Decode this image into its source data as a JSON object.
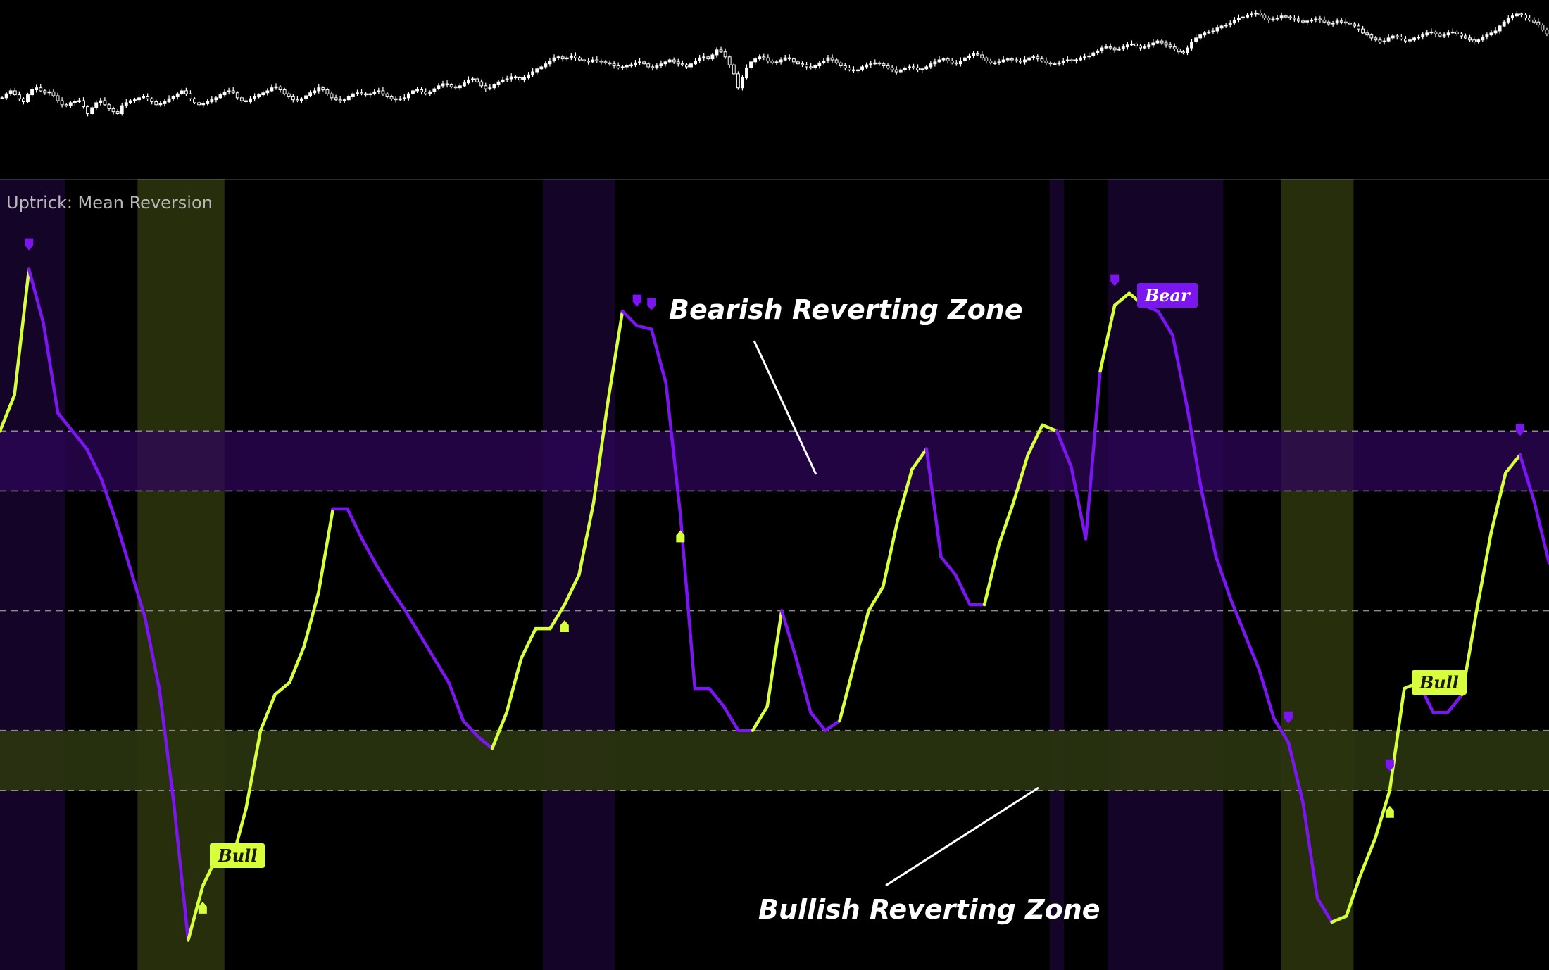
{
  "indicator": {
    "title": "Uptrick: Mean Reversion"
  },
  "annotations": {
    "bearish_zone": "Bearish Reverting Zone",
    "bullish_zone": "Bullish Reverting Zone"
  },
  "labels": {
    "bull": "Bull",
    "bear": "Bear"
  },
  "colors": {
    "background": "#000000",
    "bull": "#d7ff3c",
    "bear": "#7b16f0",
    "bear_zone_band": "#2e0659",
    "bull_zone_band": "#2a3510",
    "dashed_levels": "#8a8a8a",
    "price_candles": "#ffffff"
  },
  "chart_data": [
    {
      "type": "candlestick",
      "name": "price",
      "close": [
        100,
        104,
        107,
        103,
        99,
        96,
        103,
        108,
        110,
        107,
        105,
        106,
        102,
        97,
        93,
        92,
        95,
        96,
        97,
        91,
        84,
        90,
        95,
        97,
        93,
        89,
        86,
        84,
        92,
        95,
        97,
        98,
        100,
        101,
        99,
        96,
        93,
        94,
        96,
        99,
        101,
        104,
        107,
        104,
        99,
        95,
        93,
        94,
        96,
        98,
        100,
        103,
        106,
        107,
        105,
        100,
        97,
        96,
        99,
        101,
        103,
        105,
        107,
        110,
        111,
        108,
        104,
        101,
        98,
        97,
        99,
        102,
        105,
        107,
        110,
        108,
        104,
        100,
        98,
        97,
        98,
        101,
        104,
        105,
        104,
        103,
        104,
        106,
        107,
        104,
        101,
        99,
        98,
        99,
        100,
        104,
        107,
        108,
        106,
        104,
        106,
        109,
        112,
        114,
        113,
        111,
        110,
        112,
        115,
        118,
        119,
        116,
        112,
        109,
        110,
        113,
        116,
        118,
        119,
        121,
        120,
        118,
        120,
        123,
        126,
        129,
        131,
        134,
        137,
        140,
        141,
        139,
        140,
        142,
        140,
        138,
        137,
        136,
        138,
        137,
        136,
        135,
        134,
        132,
        130,
        131,
        132,
        133,
        135,
        136,
        134,
        131,
        130,
        132,
        134,
        136,
        138,
        136,
        134,
        133,
        131,
        134,
        137,
        140,
        141,
        139,
        143,
        148,
        146,
        141,
        133,
        124,
        110,
        120,
        130,
        136,
        139,
        141,
        140,
        137,
        135,
        136,
        138,
        140,
        139,
        136,
        134,
        133,
        131,
        130,
        132,
        135,
        137,
        140,
        138,
        135,
        132,
        130,
        128,
        127,
        128,
        131,
        133,
        134,
        135,
        134,
        132,
        130,
        128,
        126,
        128,
        130,
        131,
        130,
        128,
        129,
        131,
        134,
        136,
        138,
        139,
        137,
        135,
        134,
        137,
        140,
        142,
        144,
        143,
        140,
        137,
        135,
        135,
        136,
        138,
        139,
        138,
        137,
        136,
        138,
        140,
        141,
        139,
        137,
        135,
        134,
        134,
        135,
        137,
        138,
        137,
        138,
        140,
        141,
        142,
        145,
        147,
        150,
        151,
        150,
        148,
        149,
        151,
        153,
        154,
        152,
        150,
        151,
        153,
        155,
        157,
        155,
        153,
        151,
        149,
        146,
        145,
        150,
        156,
        160,
        163,
        165,
        166,
        167,
        170,
        172,
        173,
        175,
        178,
        180,
        181,
        183,
        184,
        185,
        183,
        180,
        178,
        179,
        180,
        182,
        181,
        180,
        179,
        177,
        176,
        177,
        178,
        179,
        178,
        176,
        174,
        175,
        177,
        176,
        175,
        174,
        172,
        169,
        165,
        163,
        160,
        158,
        156,
        157,
        160,
        162,
        161,
        159,
        157,
        158,
        160,
        161,
        163,
        165,
        166,
        164,
        162,
        163,
        165,
        166,
        164,
        162,
        160,
        158,
        156,
        158,
        161,
        163,
        165,
        167,
        172,
        176,
        180,
        182,
        184,
        183,
        180,
        178,
        176,
        173,
        168,
        164
      ]
    },
    {
      "type": "line",
      "name": "",
      "y": [
        1.5,
        1.8,
        2.85,
        2.4,
        1.65,
        1.5,
        1.35,
        1.1,
        0.75,
        0.35,
        -0.05,
        -0.65,
        -1.6,
        -2.75,
        -2.3,
        -2.05,
        -2.1,
        -1.65,
        -1.0,
        -0.7,
        -0.6,
        -0.3,
        0.15,
        0.85,
        0.85,
        0.6,
        0.38,
        0.18,
        0.0,
        -0.2,
        -0.4,
        -0.6,
        -0.92,
        -1.05,
        -1.15,
        -0.85,
        -0.4,
        -0.15,
        -0.15,
        0.05,
        0.3,
        0.9,
        1.75,
        2.5,
        2.38,
        2.35,
        1.9,
        0.8,
        -0.65,
        -0.65,
        -0.8,
        -1.0,
        -1.0,
        -0.8,
        0.0,
        -0.4,
        -0.85,
        -1.0,
        -0.92,
        -0.45,
        0.0,
        0.2,
        0.75,
        1.18,
        1.35,
        0.45,
        0.3,
        0.05,
        0.05,
        0.55,
        0.9,
        1.3,
        1.55,
        1.5,
        1.2,
        0.6,
        2.0,
        2.55,
        2.65,
        2.55,
        2.5,
        2.3,
        1.7,
        1.0,
        0.45,
        0.1,
        -0.2,
        -0.5,
        -0.9,
        -1.1,
        -1.6,
        -2.4,
        -2.6,
        -2.55,
        -2.2,
        -1.9,
        -1.5,
        -0.65,
        -0.6,
        -0.85,
        -0.85,
        -0.7,
        0.0,
        0.65,
        1.15,
        1.3,
        0.9,
        0.4
      ],
      "signal_color": [
        "bull",
        "bull",
        "bull",
        "bear",
        "bear",
        "bear",
        "bear",
        "bear",
        "bear",
        "bear",
        "bear",
        "bear",
        "bear",
        "bear",
        "bull",
        "bull",
        "bull",
        "bull",
        "bull",
        "bull",
        "bull",
        "bull",
        "bull",
        "bull",
        "bear",
        "bear",
        "bear",
        "bear",
        "bear",
        "bear",
        "bear",
        "bear",
        "bear",
        "bear",
        "bear",
        "bull",
        "bull",
        "bull",
        "bull",
        "bull",
        "bull",
        "bull",
        "bull",
        "bull",
        "bear",
        "bear",
        "bear",
        "bear",
        "bear",
        "bear",
        "bear",
        "bear",
        "bear",
        "bull",
        "bull",
        "bear",
        "bear",
        "bear",
        "bear",
        "bull",
        "bull",
        "bull",
        "bull",
        "bull",
        "bull",
        "bear",
        "bear",
        "bear",
        "bear",
        "bull",
        "bull",
        "bull",
        "bull",
        "bull",
        "bear",
        "bear",
        "bear",
        "bull",
        "bull",
        "bull",
        "bear",
        "bear",
        "bear",
        "bear",
        "bear",
        "bear",
        "bear",
        "bear",
        "bear",
        "bear",
        "bear",
        "bear",
        "bear",
        "bull",
        "bull",
        "bull",
        "bull",
        "bull",
        "bull",
        "bear",
        "bear",
        "bear",
        "bull",
        "bull",
        "bull",
        "bull",
        "bear",
        "bear"
      ],
      "levels": [
        1.5,
        1.0,
        0.0,
        -1.0,
        -1.5
      ],
      "bear_zone": [
        1.0,
        1.5
      ],
      "bull_zone": [
        -1.5,
        -1.0
      ],
      "ylim": [
        -3.0,
        3.6
      ],
      "grid": false,
      "bear_signal_bars": [
        2,
        44,
        45,
        77,
        89,
        96,
        105
      ],
      "bull_signal_bars": [
        14,
        39,
        47,
        96
      ],
      "bear_background_ranges": [
        [
          0,
          4
        ],
        [
          38,
          42
        ],
        [
          73,
          73
        ],
        [
          77,
          84
        ]
      ],
      "bull_background_ranges": [
        [
          10,
          15
        ],
        [
          89,
          93
        ]
      ],
      "bull_label_bars": [
        15,
        98
      ],
      "bear_label_bars": [
        80
      ]
    }
  ]
}
